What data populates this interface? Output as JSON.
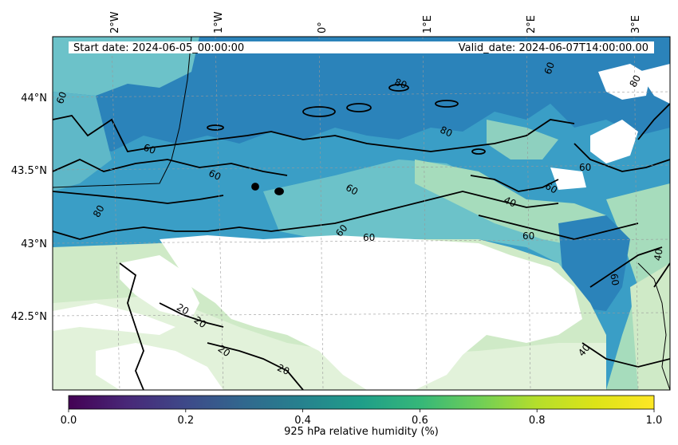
{
  "header": {
    "start_date": "Start date: 2024-06-05_00:00:00",
    "valid_date": "Valid_date: 2024-06-07T14:00:00.00"
  },
  "axes": {
    "lon_ticks": [
      "2°W",
      "1°W",
      "0°",
      "1°E",
      "2°E",
      "3°E"
    ],
    "lat_ticks": [
      "44°N",
      "43.5°N",
      "43°N",
      "42.5°N"
    ]
  },
  "contour_labels": [
    "60",
    "60",
    "80",
    "80",
    "80",
    "80",
    "60",
    "60",
    "60",
    "60",
    "60",
    "40",
    "60",
    "60",
    "60",
    "40",
    "60",
    "40",
    "20",
    "20",
    "20",
    "20"
  ],
  "colorbar": {
    "label": "925 hPa relative humidity (%)",
    "ticks": [
      "0.0",
      "0.2",
      "0.4",
      "0.6",
      "0.8",
      "1.0"
    ],
    "colormap": "viridis",
    "range": [
      0.0,
      1.0
    ]
  },
  "colors": {
    "deep_blue": "#2b83ba",
    "mid_blue": "#3a9ec6",
    "teal": "#6cc2c9",
    "light_green": "#a6dcbc",
    "pale_green": "#cfeac7",
    "very_pale": "#e2f2da",
    "missing": "#ffffff"
  }
}
